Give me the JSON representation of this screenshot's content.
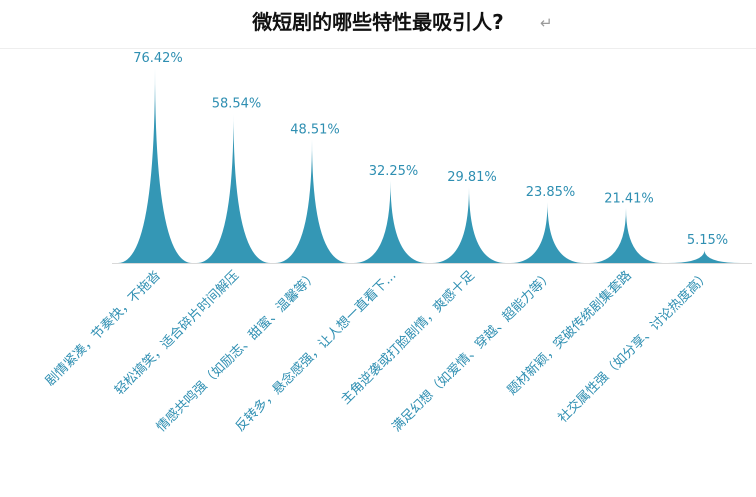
{
  "header": {
    "title": "微短剧的哪些特性最吸引人?",
    "paragraph_mark": "↵"
  },
  "colors": {
    "bar": "#3497b5",
    "label": "#2f8fb2",
    "axis": "#d9d9d9"
  },
  "chart_data": {
    "type": "bar",
    "shape": "pointed-cone",
    "title": "微短剧的哪些特性最吸引人?",
    "xlabel": "",
    "ylabel": "",
    "ylim": [
      0,
      100
    ],
    "grid": false,
    "categories": [
      "剧情紧凑，节奏快，不拖沓",
      "轻松搞笑，适合碎片时间解压",
      "情感共鸣强（如励志、甜蜜、温馨等）",
      "反转多，悬念感强，让人想一直看下...",
      "主角逆袭或打脸剧情，爽感十足",
      "满足幻想（如爱情、穿越、超能力等）",
      "题材新颖，突破传统剧集套路",
      "社交属性强（如分享、讨论热度高）"
    ],
    "values": [
      76.42,
      58.54,
      48.51,
      32.25,
      29.81,
      23.85,
      21.41,
      5.15
    ],
    "value_labels": [
      "76.42%",
      "58.54%",
      "48.51%",
      "32.25%",
      "29.81%",
      "23.85%",
      "21.41%",
      "5.15%"
    ]
  }
}
